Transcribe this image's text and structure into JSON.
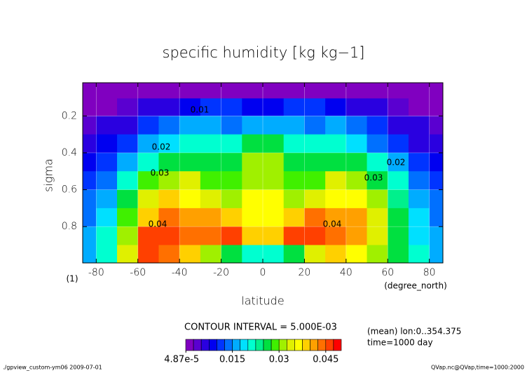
{
  "chart_data": {
    "type": "contour",
    "title": "specific humidity [kg kg−1]",
    "x_label": "latitude",
    "y_label": "sigma",
    "x_unit": "(degree_north)",
    "y_unit": "(1)",
    "xlim": [
      -86.5,
      86.5
    ],
    "ylim": [
      0.997,
      0.02
    ],
    "xticks": [
      -80,
      -60,
      -40,
      -20,
      0,
      20,
      40,
      60,
      80
    ],
    "yticks": [
      0.2,
      0.4,
      0.6,
      0.8
    ],
    "grid": true,
    "x": [
      -85,
      -75,
      -65,
      -55,
      -45,
      -35,
      -25,
      -15,
      -5,
      5,
      15,
      25,
      35,
      45,
      55,
      65,
      75,
      85
    ],
    "y": [
      0.06,
      0.15,
      0.25,
      0.35,
      0.45,
      0.55,
      0.65,
      0.75,
      0.85,
      0.95
    ],
    "z": [
      [
        0.001,
        0.001,
        0.001,
        0.001,
        0.001,
        0.001,
        0.002,
        0.002,
        0.002,
        0.002,
        0.002,
        0.002,
        0.001,
        0.001,
        0.001,
        0.001,
        0.001,
        0.001
      ],
      [
        0.002,
        0.002,
        0.003,
        0.005,
        0.007,
        0.009,
        0.01,
        0.01,
        0.009,
        0.009,
        0.01,
        0.01,
        0.009,
        0.007,
        0.005,
        0.003,
        0.002,
        0.002
      ],
      [
        0.004,
        0.005,
        0.007,
        0.01,
        0.013,
        0.016,
        0.016,
        0.014,
        0.016,
        0.016,
        0.015,
        0.014,
        0.016,
        0.014,
        0.01,
        0.007,
        0.005,
        0.004
      ],
      [
        0.006,
        0.008,
        0.011,
        0.015,
        0.019,
        0.022,
        0.02,
        0.021,
        0.026,
        0.026,
        0.022,
        0.02,
        0.021,
        0.019,
        0.014,
        0.01,
        0.007,
        0.006
      ],
      [
        0.009,
        0.011,
        0.016,
        0.021,
        0.025,
        0.027,
        0.025,
        0.026,
        0.03,
        0.03,
        0.026,
        0.025,
        0.027,
        0.025,
        0.02,
        0.015,
        0.011,
        0.009
      ],
      [
        0.011,
        0.014,
        0.022,
        0.028,
        0.031,
        0.033,
        0.029,
        0.028,
        0.032,
        0.032,
        0.028,
        0.029,
        0.033,
        0.031,
        0.027,
        0.02,
        0.014,
        0.011
      ],
      [
        0.013,
        0.017,
        0.026,
        0.033,
        0.038,
        0.036,
        0.033,
        0.031,
        0.036,
        0.035,
        0.031,
        0.033,
        0.037,
        0.037,
        0.03,
        0.023,
        0.016,
        0.013
      ],
      [
        0.014,
        0.019,
        0.029,
        0.038,
        0.043,
        0.04,
        0.042,
        0.038,
        0.036,
        0.036,
        0.038,
        0.043,
        0.042,
        0.04,
        0.033,
        0.025,
        0.018,
        0.014
      ],
      [
        0.015,
        0.021,
        0.031,
        0.045,
        0.047,
        0.043,
        0.044,
        0.046,
        0.039,
        0.039,
        0.045,
        0.047,
        0.044,
        0.041,
        0.034,
        0.026,
        0.019,
        0.015
      ],
      [
        0.016,
        0.022,
        0.033,
        0.046,
        0.044,
        0.038,
        0.03,
        0.025,
        0.02,
        0.021,
        0.025,
        0.033,
        0.038,
        0.037,
        0.031,
        0.025,
        0.02,
        0.016
      ]
    ],
    "contour_labels": [
      "0.01",
      "0.02",
      "0.02",
      "0.03",
      "0.03",
      "0.04",
      "0.04"
    ],
    "colorbar": {
      "levels": [
        0,
        0.0025,
        0.005,
        0.0075,
        0.01,
        0.0125,
        0.015,
        0.0175,
        0.02,
        0.0225,
        0.025,
        0.0275,
        0.03,
        0.0325,
        0.035,
        0.0375,
        0.04,
        0.0425,
        0.045,
        0.0475,
        0.05
      ],
      "colors": [
        "#8000c0",
        "#5a00d0",
        "#2a00e0",
        "#0000f0",
        "#0034ff",
        "#0070ff",
        "#00acff",
        "#00e0ff",
        "#00ffd0",
        "#00f08c",
        "#00e040",
        "#40f000",
        "#a0f000",
        "#e0f000",
        "#ffff00",
        "#ffd000",
        "#ffa000",
        "#ff7000",
        "#ff4000",
        "#ff0000"
      ],
      "ticks": [
        {
          "value": 4.87e-05,
          "label": "4.87e-5"
        },
        0.015,
        0.03,
        0.045
      ]
    },
    "contour_interval": "CONTOUR INTERVAL = 5.000E-03",
    "notes": [
      "(mean) lon:0..354.375",
      "time=1000 day"
    ],
    "footer_left": "./gpview_custom-ym06  2009-07-01",
    "footer_right": "QVap.nc@QVap,time=1000:2000"
  }
}
